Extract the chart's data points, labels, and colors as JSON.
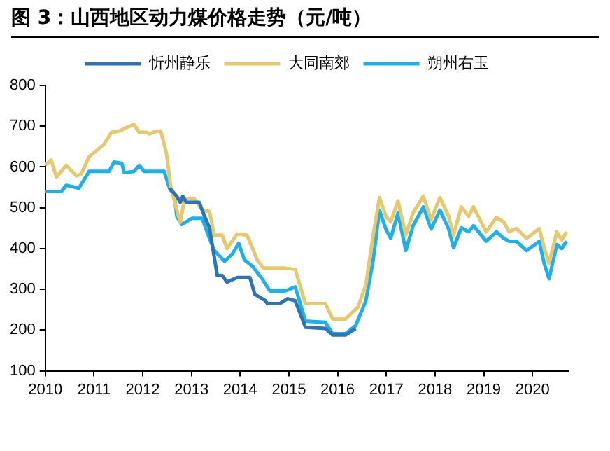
{
  "chart_data": {
    "type": "line",
    "title": "图 3：山西地区动力煤价格走势（元/吨）",
    "xlim": [
      2010,
      2020.73
    ],
    "xticks": [
      2010,
      2011,
      2012,
      2013,
      2014,
      2015,
      2016,
      2017,
      2018,
      2019,
      2020
    ],
    "ylim": [
      100,
      800
    ],
    "yticks": [
      100,
      200,
      300,
      400,
      500,
      600,
      700,
      800
    ],
    "grid": false,
    "legend": "top",
    "marker": "none",
    "line_style": "solid",
    "series": [
      {
        "name": "忻州静乐",
        "color": "#2e75b6",
        "x": [
          2012.55,
          2012.7,
          2012.77,
          2012.82,
          2012.9,
          2013.16,
          2013.27,
          2013.37,
          2013.53,
          2013.63,
          2013.73,
          2013.94,
          2014.2,
          2014.3,
          2014.51,
          2014.56,
          2014.81,
          2014.97,
          2015.13,
          2015.34,
          2015.75,
          2015.9,
          2016.16,
          2016.37
        ],
        "values": [
          548,
          528,
          513,
          528,
          513,
          513,
          479,
          451,
          334,
          334,
          318,
          329,
          329,
          288,
          273,
          265,
          265,
          277,
          272,
          207,
          204,
          188,
          188,
          204
        ]
      },
      {
        "name": "大同南郊",
        "color": "#e6c86e",
        "x": [
          2010,
          2010.12,
          2010.23,
          2010.43,
          2010.64,
          2010.74,
          2010.9,
          2011.05,
          2011.2,
          2011.36,
          2011.52,
          2011.67,
          2011.82,
          2011.93,
          2012.08,
          2012.13,
          2012.29,
          2012.37,
          2012.49,
          2012.57,
          2012.7,
          2012.77,
          2012.86,
          2013.06,
          2013.22,
          2013.37,
          2013.47,
          2013.63,
          2013.73,
          2013.94,
          2014.14,
          2014.25,
          2014.35,
          2014.48,
          2014.92,
          2015.13,
          2015.34,
          2015.75,
          2015.9,
          2016.16,
          2016.42,
          2016.58,
          2016.73,
          2016.86,
          2016.99,
          2017.09,
          2017.24,
          2017.4,
          2017.55,
          2017.76,
          2017.92,
          2018.1,
          2018.28,
          2018.38,
          2018.54,
          2018.69,
          2018.79,
          2019.05,
          2019.26,
          2019.41,
          2019.52,
          2019.67,
          2019.88,
          2020.14,
          2020.24,
          2020.34,
          2020.5,
          2020.6,
          2020.7
        ],
        "values": [
          605,
          617,
          575,
          604,
          578,
          583,
          625,
          640,
          655,
          685,
          688,
          697,
          704,
          685,
          685,
          681,
          688,
          688,
          632,
          555,
          494,
          464,
          522,
          522,
          494,
          491,
          433,
          433,
          400,
          436,
          433,
          402,
          372,
          352,
          352,
          349,
          265,
          265,
          227,
          227,
          257,
          311,
          433,
          525,
          479,
          465,
          517,
          433,
          488,
          528,
          471,
          525,
          479,
          433,
          502,
          479,
          502,
          441,
          476,
          465,
          441,
          449,
          425,
          449,
          402,
          364,
          441,
          421,
          441
        ]
      },
      {
        "name": "朔州右玉",
        "color": "#1fb0ec",
        "x": [
          2010,
          2010.33,
          2010.43,
          2010.69,
          2010.9,
          2011.31,
          2011.41,
          2011.57,
          2011.62,
          2011.82,
          2011.93,
          2012.03,
          2012.44,
          2012.55,
          2012.65,
          2012.7,
          2012.8,
          2013.01,
          2013.22,
          2013.37,
          2013.47,
          2013.68,
          2013.84,
          2013.97,
          2014.09,
          2014.25,
          2014.45,
          2014.61,
          2014.92,
          2015.13,
          2015.34,
          2015.75,
          2015.9,
          2016.16,
          2016.37,
          2016.58,
          2016.73,
          2016.86,
          2016.99,
          2017.09,
          2017.24,
          2017.4,
          2017.55,
          2017.76,
          2017.92,
          2018.1,
          2018.28,
          2018.38,
          2018.54,
          2018.69,
          2018.79,
          2019.05,
          2019.26,
          2019.41,
          2019.52,
          2019.67,
          2019.88,
          2020.14,
          2020.24,
          2020.34,
          2020.5,
          2020.6,
          2020.7
        ],
        "values": [
          540,
          540,
          555,
          548,
          589,
          589,
          612,
          609,
          586,
          589,
          604,
          589,
          589,
          548,
          528,
          479,
          459,
          474,
          474,
          425,
          395,
          369,
          387,
          413,
          372,
          357,
          326,
          296,
          296,
          306,
          222,
          219,
          191,
          191,
          211,
          272,
          372,
          494,
          448,
          425,
          487,
          395,
          456,
          502,
          448,
          494,
          448,
          402,
          451,
          441,
          456,
          418,
          441,
          425,
          418,
          418,
          395,
          418,
          364,
          326,
          410,
          400,
          418
        ]
      }
    ]
  }
}
